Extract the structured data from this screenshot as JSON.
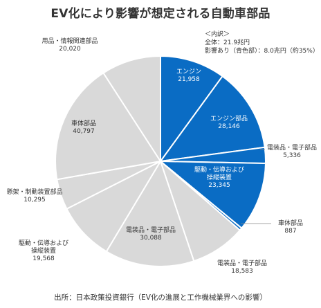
{
  "title": "EV化により影響が想定される自動車部品",
  "breakdown": {
    "heading": "＜内訳＞",
    "total": "全体：21.9兆円",
    "affected": "影響あり（青色部）：8.0兆円（約35%）"
  },
  "source": "出所：日本政策投資銀行（EV化の進展と工作機械業界への影響）",
  "colors": {
    "affected": "#0a6cc4",
    "unaffected": "#d9d9d9",
    "separator": "#ffffff",
    "leader": "#888888"
  },
  "chart_data": {
    "type": "pie",
    "title": "EV化により影響が想定される自動車部品",
    "slices": [
      {
        "label": "エンジン",
        "value": 21958,
        "display": "21,958",
        "group": "affected"
      },
      {
        "label": "エンジン部品",
        "value": 28146,
        "display": "28,146",
        "group": "affected"
      },
      {
        "label": "電装品・電子部品",
        "value": 5336,
        "display": "5,336",
        "group": "affected"
      },
      {
        "label": "駆動・伝導および操縦装置",
        "value": 23345,
        "display": "23,345",
        "group": "affected"
      },
      {
        "label": "車体部品",
        "value": 887,
        "display": "887",
        "group": "affected"
      },
      {
        "label": "電装品・電子部品",
        "value": 18583,
        "display": "18,583",
        "group": "unaffected"
      },
      {
        "label": "電装品・電子部品",
        "value": 30088,
        "display": "30,088",
        "group": "unaffected"
      },
      {
        "label": "駆動・伝導および操縦装置",
        "value": 19568,
        "display": "19,568",
        "group": "unaffected"
      },
      {
        "label": "懸架・制動装置部品",
        "value": 10295,
        "display": "10,295",
        "group": "unaffected"
      },
      {
        "label": "車体部品",
        "value": 40797,
        "display": "40,797",
        "group": "unaffected"
      },
      {
        "label": "用品・情報関連部品",
        "value": 20020,
        "display": "20,020",
        "group": "unaffected"
      }
    ]
  }
}
